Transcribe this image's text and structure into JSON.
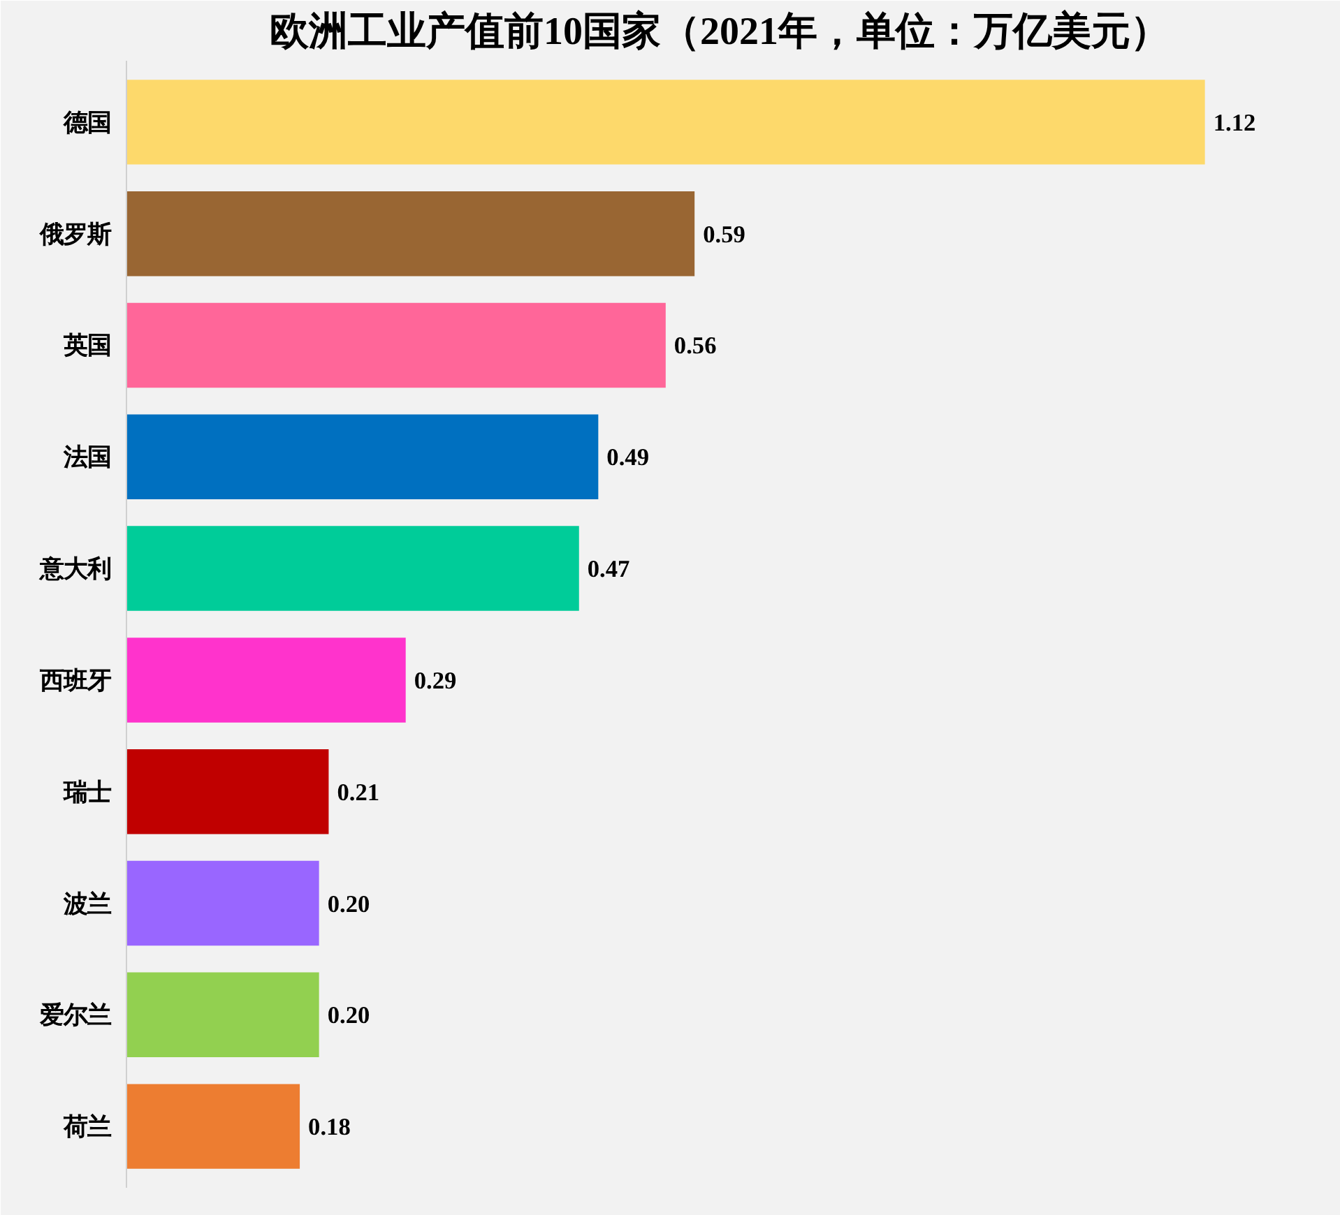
{
  "chart_data": {
    "type": "bar",
    "orientation": "horizontal",
    "title": "欧洲工业产值前10国家（2021年，单位：万亿美元）",
    "categories": [
      "德国",
      "俄罗斯",
      "英国",
      "法国",
      "意大利",
      "西班牙",
      "瑞士",
      "波兰",
      "爱尔兰",
      "荷兰"
    ],
    "values": [
      1.12,
      0.59,
      0.56,
      0.49,
      0.47,
      0.29,
      0.21,
      0.2,
      0.2,
      0.18
    ],
    "value_labels": [
      "1.12",
      "0.59",
      "0.56",
      "0.49",
      "0.47",
      "0.29",
      "0.21",
      "0.20",
      "0.20",
      "0.18"
    ],
    "colors": [
      "#fdd96b",
      "#996633",
      "#ff6699",
      "#0070c0",
      "#00cc99",
      "#ff33cc",
      "#c00000",
      "#9966ff",
      "#92d050",
      "#ed7d31"
    ],
    "grid": false
  }
}
